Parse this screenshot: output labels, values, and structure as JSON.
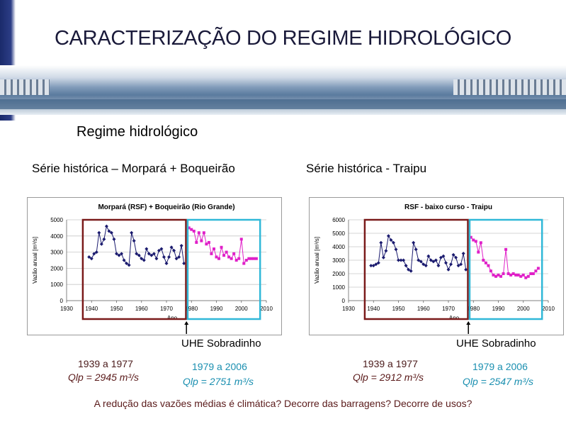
{
  "slide": {
    "title": "CARACTERIZAÇÃO DO REGIME HIDROLÓGICO",
    "subtitle": "Regime hidrológico",
    "footer": "A redução das vazões médias é climática? Decorre das barragens? Decorre de usos?"
  },
  "panels": [
    {
      "heading": "Série histórica – Morpará + Boqueirão",
      "marker_label": "UHE Sobradinho",
      "period1": {
        "label": "1939 a 1977",
        "qlp": "Qlp = 2945 m³/s"
      },
      "period2": {
        "label": "1979 a 2006",
        "qlp": "Qlp = 2751 m³/s"
      }
    },
    {
      "heading": "Série histórica - Traipu",
      "marker_label": "UHE Sobradinho",
      "period1": {
        "label": "1939 a 1977",
        "qlp": "Qlp = 2912 m³/s"
      },
      "period2": {
        "label": "1979 a 2006",
        "qlp": "Qlp = 2547 m³/s"
      }
    }
  ],
  "chart_data": [
    {
      "type": "line",
      "title": "Morpará (RSF) + Boqueirão (Rio Grande)",
      "xlabel": "Ano",
      "ylabel": "Vazão anual [m³/s]",
      "xlim": [
        1930,
        2010
      ],
      "ylim": [
        0,
        5000
      ],
      "xticks": [
        "1930",
        "1940",
        "1950",
        "1960",
        "1970",
        "1980",
        "1990",
        "2000",
        "2010"
      ],
      "yticks": [
        "0",
        "1000",
        "2000",
        "3000",
        "4000",
        "5000"
      ],
      "grid": true,
      "colors": {
        "series1": "#1a1a6e",
        "series2": "#e020c8",
        "box1": "#7a1a1a",
        "box2": "#30b8d8"
      },
      "series": [
        {
          "x": [
            1939,
            1940,
            1941,
            1942,
            1943,
            1944,
            1945,
            1946,
            1947,
            1948,
            1949,
            1950,
            1951,
            1952,
            1953,
            1954,
            1955,
            1956,
            1957,
            1958,
            1959,
            1960,
            1961,
            1962,
            1963,
            1964,
            1965,
            1966,
            1967,
            1968,
            1969,
            1970,
            1971,
            1972,
            1973,
            1974,
            1975,
            1976,
            1977
          ],
          "y": [
            2700,
            2600,
            2900,
            3000,
            4200,
            3500,
            3800,
            4600,
            4300,
            4200,
            3800,
            2900,
            2800,
            2900,
            2500,
            2300,
            2200,
            4200,
            3700,
            2900,
            2800,
            2600,
            2500,
            3200,
            2900,
            2800,
            2900,
            2600,
            3100,
            3200,
            2700,
            2300,
            2700,
            3300,
            3100,
            2600,
            2700,
            3400,
            2300
          ]
        },
        {
          "x": [
            1979,
            1980,
            1981,
            1982,
            1983,
            1984,
            1985,
            1986,
            1987,
            1988,
            1989,
            1990,
            1991,
            1992,
            1993,
            1994,
            1995,
            1996,
            1997,
            1998,
            1999,
            2000,
            2001,
            2002,
            2003,
            2004,
            2005,
            2006
          ],
          "y": [
            4500,
            4400,
            4300,
            3600,
            4200,
            3700,
            4200,
            3500,
            3600,
            2900,
            3200,
            2700,
            2600,
            3300,
            2800,
            3000,
            2700,
            2600,
            2900,
            2500,
            2600,
            3800,
            2300,
            2500,
            2600,
            2600,
            2600,
            2600
          ]
        }
      ]
    },
    {
      "type": "line",
      "title": "RSF - baixo curso - Traipu",
      "xlabel": "Ano",
      "ylabel": "Vazão anual [m³/s]",
      "xlim": [
        1930,
        2010
      ],
      "ylim": [
        0,
        6000
      ],
      "xticks": [
        "1930",
        "1940",
        "1950",
        "1960",
        "1970",
        "1980",
        "1990",
        "2000",
        "2010"
      ],
      "yticks": [
        "0",
        "1000",
        "2000",
        "3000",
        "4000",
        "5000",
        "6000"
      ],
      "grid": true,
      "colors": {
        "series1": "#1a1a6e",
        "series2": "#e020c8",
        "box1": "#7a1a1a",
        "box2": "#30b8d8"
      },
      "series": [
        {
          "x": [
            1939,
            1940,
            1941,
            1942,
            1943,
            1944,
            1945,
            1946,
            1947,
            1948,
            1949,
            1950,
            1951,
            1952,
            1953,
            1954,
            1955,
            1956,
            1957,
            1958,
            1959,
            1960,
            1961,
            1962,
            1963,
            1964,
            1965,
            1966,
            1967,
            1968,
            1969,
            1970,
            1971,
            1972,
            1973,
            1974,
            1975,
            1976,
            1977
          ],
          "y": [
            2600,
            2600,
            2700,
            2800,
            4300,
            3200,
            3700,
            4800,
            4500,
            4300,
            3800,
            3000,
            3000,
            3000,
            2600,
            2300,
            2200,
            4300,
            3800,
            3000,
            2900,
            2700,
            2600,
            3300,
            3000,
            2900,
            3000,
            2600,
            3200,
            3300,
            2800,
            2300,
            2700,
            3400,
            3200,
            2600,
            2700,
            3500,
            2300
          ]
        },
        {
          "x": [
            1979,
            1980,
            1981,
            1982,
            1983,
            1984,
            1985,
            1986,
            1987,
            1988,
            1989,
            1990,
            1991,
            1992,
            1993,
            1994,
            1995,
            1996,
            1997,
            1998,
            1999,
            2000,
            2001,
            2002,
            2003,
            2004,
            2005,
            2006
          ],
          "y": [
            4700,
            4500,
            4400,
            3600,
            4300,
            3000,
            2800,
            2600,
            2200,
            1900,
            1800,
            1900,
            1800,
            2000,
            3800,
            2000,
            1900,
            2000,
            1900,
            1900,
            1800,
            1900,
            1700,
            1800,
            2000,
            2000,
            2200,
            2400
          ]
        }
      ]
    }
  ]
}
